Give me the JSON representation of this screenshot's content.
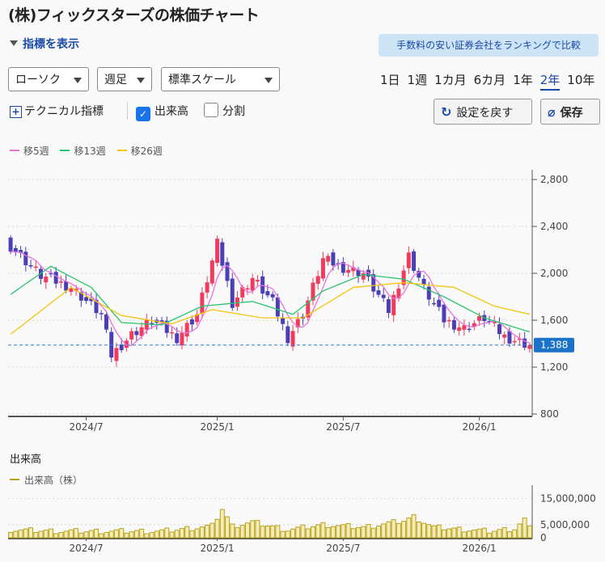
{
  "title": "(株)フィックスターズの株価チャート",
  "indicator_toggle": "指標を表示",
  "promo_link": "手数料の安い証券会社をランキングで比較",
  "controls": {
    "chart_style": "ローソク",
    "interval": "週足",
    "scale": "標準スケール",
    "periods": [
      "1日",
      "1週",
      "1カ月",
      "6カ月",
      "1年",
      "2年",
      "10年"
    ],
    "active_period": "2年",
    "technical": "テクニカル指標",
    "volume_checkbox": "出来高",
    "split_checkbox": "分割",
    "reset_button": "設定を戻す",
    "save_button": "保存"
  },
  "legend": {
    "ma5": "移5週",
    "ma13": "移13週",
    "ma26": "移26週"
  },
  "volume_panel": {
    "title": "出来高",
    "legend": "出来高（株）"
  },
  "colors": {
    "up": "#f03c5c",
    "down": "#4b3fb5",
    "ma5": "#e872e0",
    "ma13": "#29c46e",
    "ma26": "#f2c511",
    "volume": "#b8a21a",
    "accent": "#1a4aa8"
  },
  "chart_data": [
    {
      "type": "candlestick",
      "title": "",
      "price_axis": {
        "ticks": [
          2800,
          2400,
          2000,
          1600,
          1200,
          800
        ],
        "min": 800,
        "max": 2800
      },
      "x_axis": {
        "ticks": [
          "2024/7",
          "2025/1",
          "2025/7",
          "2026/1"
        ],
        "range_weeks": 104,
        "tick_weeks": [
          15,
          41,
          66,
          93
        ]
      },
      "last_price": 1388,
      "candle_count": 104,
      "series_names": [
        "移5週",
        "移13週",
        "移26週"
      ],
      "close_anchors": [
        [
          0,
          2230
        ],
        [
          6,
          1980
        ],
        [
          12,
          1880
        ],
        [
          18,
          1650
        ],
        [
          20,
          1300
        ],
        [
          24,
          1480
        ],
        [
          28,
          1600
        ],
        [
          33,
          1450
        ],
        [
          37,
          1650
        ],
        [
          41,
          2250
        ],
        [
          44,
          1750
        ],
        [
          48,
          1960
        ],
        [
          52,
          1750
        ],
        [
          55,
          1450
        ],
        [
          58,
          1650
        ],
        [
          62,
          2120
        ],
        [
          66,
          2050
        ],
        [
          70,
          2000
        ],
        [
          75,
          1680
        ],
        [
          79,
          2150
        ],
        [
          82,
          1870
        ],
        [
          86,
          1600
        ],
        [
          90,
          1530
        ],
        [
          94,
          1620
        ],
        [
          98,
          1460
        ],
        [
          103,
          1388
        ]
      ],
      "ma26_anchors": [
        [
          0,
          1480
        ],
        [
          12,
          1880
        ],
        [
          22,
          1640
        ],
        [
          32,
          1570
        ],
        [
          40,
          1690
        ],
        [
          50,
          1620
        ],
        [
          58,
          1620
        ],
        [
          68,
          1880
        ],
        [
          78,
          1920
        ],
        [
          88,
          1880
        ],
        [
          96,
          1720
        ],
        [
          103,
          1650
        ]
      ],
      "ma13_anchors": [
        [
          0,
          1820
        ],
        [
          8,
          2060
        ],
        [
          16,
          1880
        ],
        [
          22,
          1580
        ],
        [
          30,
          1560
        ],
        [
          38,
          1720
        ],
        [
          48,
          1760
        ],
        [
          56,
          1650
        ],
        [
          62,
          1850
        ],
        [
          70,
          1990
        ],
        [
          78,
          1950
        ],
        [
          86,
          1800
        ],
        [
          94,
          1620
        ],
        [
          103,
          1500
        ]
      ]
    },
    {
      "type": "bar",
      "title": "",
      "y_ticks": [
        15000000,
        5000000,
        0
      ],
      "y_tick_labels": [
        "15,000,000",
        "5,000,000",
        "0"
      ],
      "y_max": 20000000,
      "x_axis": {
        "ticks": [
          "2024/7",
          "2025/1",
          "2025/7",
          "2026/1"
        ]
      },
      "value_anchors": [
        [
          0,
          3000000
        ],
        [
          10,
          2500000
        ],
        [
          30,
          2500000
        ],
        [
          40,
          4500000
        ],
        [
          42,
          11000000
        ],
        [
          44,
          4500000
        ],
        [
          48,
          6000000
        ],
        [
          55,
          3000000
        ],
        [
          62,
          5000000
        ],
        [
          70,
          4000000
        ],
        [
          78,
          6500000
        ],
        [
          80,
          8000000
        ],
        [
          84,
          4000000
        ],
        [
          95,
          2500000
        ],
        [
          100,
          3500000
        ],
        [
          102,
          7000000
        ],
        [
          103,
          3500000
        ]
      ]
    }
  ]
}
